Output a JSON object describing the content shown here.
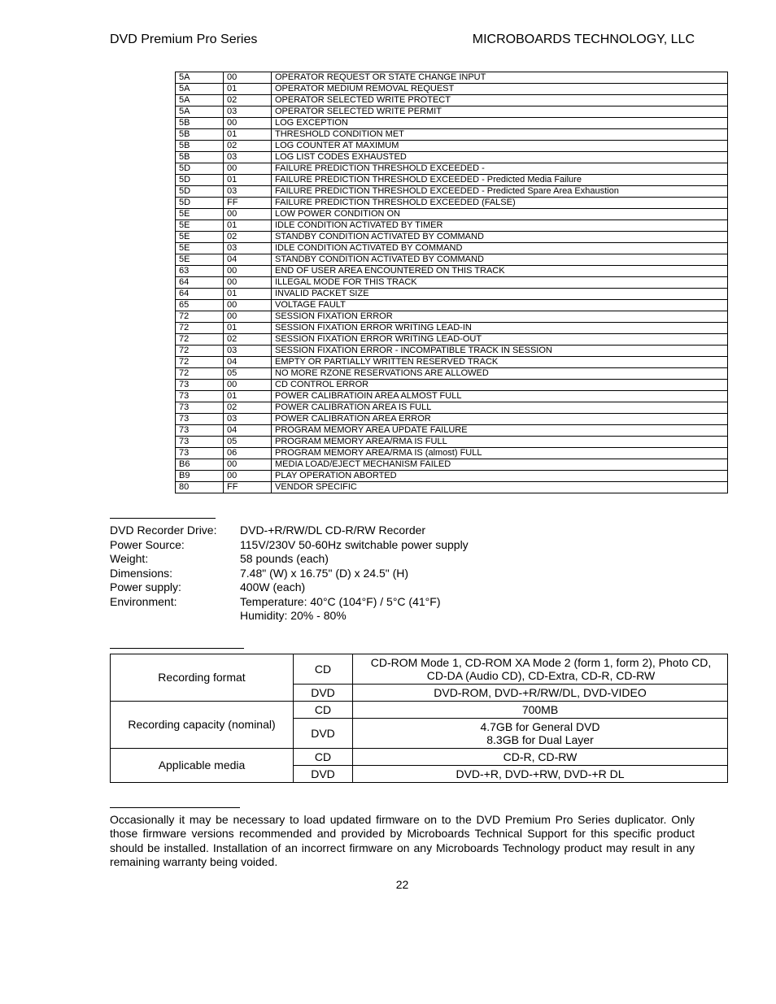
{
  "header": {
    "left": "DVD Premium Pro Series",
    "right": "MICROBOARDS TECHNOLOGY, LLC"
  },
  "codes": {
    "rows": [
      [
        "5A",
        "00",
        "OPERATOR REQUEST OR STATE CHANGE INPUT"
      ],
      [
        "5A",
        "01",
        "OPERATOR MEDIUM REMOVAL REQUEST"
      ],
      [
        "5A",
        "02",
        "OPERATOR SELECTED WRITE PROTECT"
      ],
      [
        "5A",
        "03",
        "OPERATOR SELECTED WRITE PERMIT"
      ],
      [
        "5B",
        "00",
        "LOG EXCEPTION"
      ],
      [
        "5B",
        "01",
        "THRESHOLD CONDITION MET"
      ],
      [
        "5B",
        "02",
        "LOG COUNTER AT MAXIMUM"
      ],
      [
        "5B",
        "03",
        "LOG LIST CODES EXHAUSTED"
      ],
      [
        "5D",
        "00",
        "FAILURE PREDICTION THRESHOLD EXCEEDED -"
      ],
      [
        "5D",
        "01",
        "FAILURE PREDICTION THRESHOLD EXCEEDED - Predicted Media Failure"
      ],
      [
        "5D",
        "03",
        "FAILURE PREDICTION THRESHOLD EXCEEDED - Predicted Spare Area Exhaustion"
      ],
      [
        "5D",
        "FF",
        "FAILURE PREDICTION THRESHOLD EXCEEDED (FALSE)"
      ],
      [
        "5E",
        "00",
        "LOW POWER CONDITION ON"
      ],
      [
        "5E",
        "01",
        "IDLE CONDITION ACTIVATED BY TIMER"
      ],
      [
        "5E",
        "02",
        "STANDBY CONDITION ACTIVATED BY COMMAND"
      ],
      [
        "5E",
        "03",
        "IDLE CONDITION ACTIVATED BY COMMAND"
      ],
      [
        "5E",
        "04",
        "STANDBY CONDITION ACTIVATED BY COMMAND"
      ],
      [
        "63",
        "00",
        "END OF USER AREA ENCOUNTERED ON THIS TRACK"
      ],
      [
        "64",
        "00",
        "ILLEGAL MODE FOR THIS TRACK"
      ],
      [
        "64",
        "01",
        "INVALID PACKET SIZE"
      ],
      [
        "65",
        "00",
        "VOLTAGE FAULT"
      ],
      [
        "72",
        "00",
        "SESSION FIXATION ERROR"
      ],
      [
        "72",
        "01",
        "SESSION FIXATION ERROR WRITING LEAD-IN"
      ],
      [
        "72",
        "02",
        "SESSION FIXATION ERROR WRITING LEAD-OUT"
      ],
      [
        "72",
        "03",
        "SESSION FIXATION ERROR - INCOMPATIBLE TRACK IN SESSION"
      ],
      [
        "72",
        "04",
        "EMPTY OR PARTIALLY WRITTEN RESERVED TRACK"
      ],
      [
        "72",
        "05",
        "NO MORE RZONE RESERVATIONS ARE ALLOWED"
      ],
      [
        "73",
        "00",
        "CD CONTROL ERROR"
      ],
      [
        "73",
        "01",
        "POWER CALIBRATIOIN AREA ALMOST FULL"
      ],
      [
        "73",
        "02",
        "POWER CALIBRATION AREA IS FULL"
      ],
      [
        "73",
        "03",
        "POWER CALIBRATION AREA ERROR"
      ],
      [
        "73",
        "04",
        "PROGRAM MEMORY AREA UPDATE FAILURE"
      ],
      [
        "73",
        "05",
        "PROGRAM MEMORY AREA/RMA IS FULL"
      ],
      [
        "73",
        "06",
        "PROGRAM MEMORY AREA/RMA IS (almost) FULL"
      ],
      [
        "B6",
        "00",
        "MEDIA LOAD/EJECT MECHANISM FAILED"
      ],
      [
        "B9",
        "00",
        "PLAY OPERATION ABORTED"
      ],
      [
        "80",
        "FF",
        "VENDOR SPECIFIC"
      ]
    ]
  },
  "specs": {
    "rows": [
      {
        "label": "DVD Recorder Drive:",
        "value": "DVD-+R/RW/DL CD-R/RW Recorder"
      },
      {
        "label": "Power Source:",
        "value": "115V/230V 50-60Hz switchable power supply"
      },
      {
        "label": "Weight:",
        "value": "58 pounds (each)"
      },
      {
        "label": "Dimensions:",
        "value": "7.48\" (W) x 16.75\" (D) x 24.5\" (H)"
      },
      {
        "label": "Power supply:",
        "value": "400W (each)"
      },
      {
        "label": "Environment:",
        "value": "Temperature: 40°C (104°F) / 5°C (41°F)"
      },
      {
        "label": "",
        "value": "Humidity: 20% - 80%"
      }
    ]
  },
  "writer": {
    "row1_label": "Recording format",
    "row1_cd": "CD",
    "row1_cd_val": "CD-ROM Mode 1, CD-ROM XA Mode 2 (form 1, form 2), Photo CD, CD-DA (Audio CD), CD-Extra, CD-R, CD-RW",
    "row1_dvd": "DVD",
    "row1_dvd_val": "DVD-ROM, DVD-+R/RW/DL, DVD-VIDEO",
    "row2_label": "Recording capacity (nominal)",
    "row2_cd": "CD",
    "row2_cd_val": "700MB",
    "row2_dvd": "DVD",
    "row2_dvd_val": "4.7GB for General DVD\n8.3GB for Dual Layer",
    "row3_label": "Applicable media",
    "row3_cd": "CD",
    "row3_cd_val": "CD-R, CD-RW",
    "row3_dvd": "DVD",
    "row3_dvd_val": "DVD-+R, DVD-+RW, DVD-+R DL"
  },
  "firmware": {
    "text": "Occasionally it may be necessary to load updated firmware on to the DVD Premium Pro Series duplicator.  Only those firmware versions recommended and provided by Microboards Technical Support for this specific product should be installed.  Installation of an incorrect firmware on any Microboards Technology product may result in any remaining warranty being voided."
  },
  "page_number": "22"
}
